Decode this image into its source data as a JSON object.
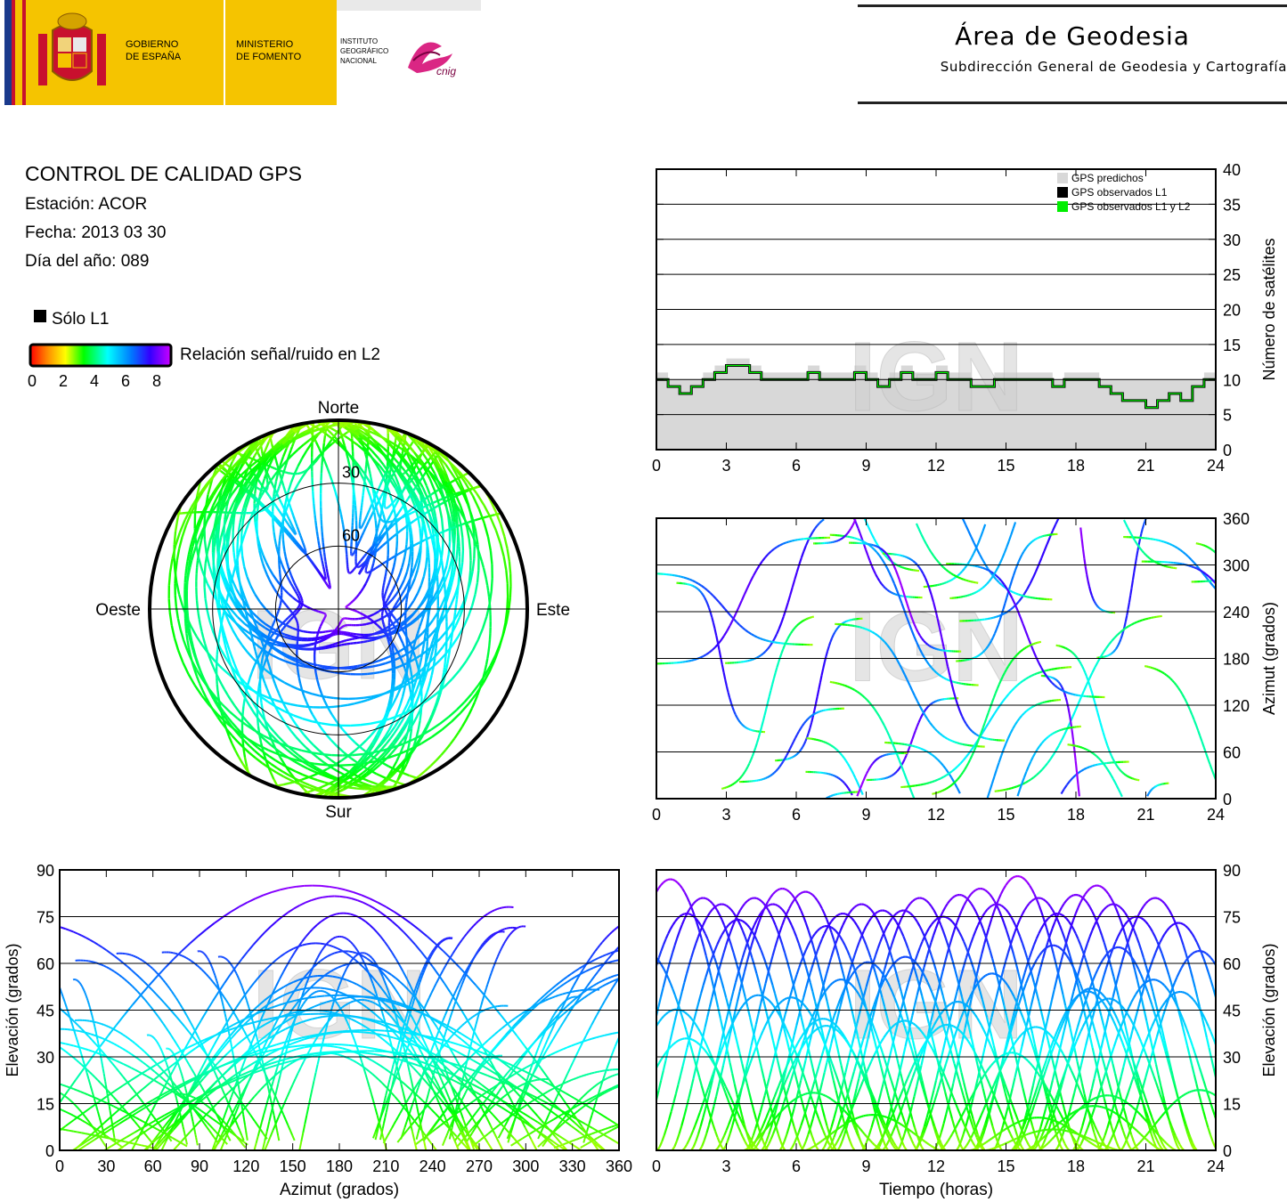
{
  "header": {
    "gobierno_line1": "GOBIERNO",
    "gobierno_line2": "DE ESPAÑA",
    "ministerio_line1": "MINISTERIO",
    "ministerio_line2": "DE FOMENTO",
    "instituto_line1": "INSTITUTO",
    "instituto_line2": "GEOGRÁFICO",
    "instituto_line3": "NACIONAL",
    "cnig_logo_text": "cnig",
    "area_title": "Área de Geodesia",
    "area_subtitle": "Subdirección General de Geodesia y Cartografía"
  },
  "info": {
    "title": "CONTROL DE CALIDAD GPS",
    "station": "Estación: ACOR",
    "date": "Fecha: 2013 03 30",
    "doy": "Día del año: 089"
  },
  "legend": {
    "only_l1": "Sólo L1",
    "snr_label": "Relación señal/ruido en L2",
    "snr_ticks": [
      "0",
      "2",
      "4",
      "6",
      "8"
    ]
  },
  "watermark": "IGN",
  "colors": {
    "l2_snr_scale": [
      "#ff0000",
      "#ff8800",
      "#ffff00",
      "#00ff00",
      "#00ffff",
      "#0066ff",
      "#0000ff",
      "#9900ff",
      "#cc00ff"
    ],
    "predicted_fill": "#d8d8d8",
    "observed_l1": "#000000",
    "observed_l1_l2": "#00ee00"
  },
  "chart_data": [
    {
      "type": "polar",
      "id": "skyplot",
      "labels": {
        "north": "Norte",
        "south": "Sur",
        "east": "Este",
        "west": "Oeste"
      },
      "elevation_rings": [
        "30",
        "60"
      ]
    },
    {
      "type": "area",
      "id": "num_sats",
      "ylabel": "Número de satélites",
      "xticks": [
        "0",
        "3",
        "6",
        "9",
        "12",
        "15",
        "18",
        "21",
        "24"
      ],
      "yticks": [
        "0",
        "5",
        "10",
        "15",
        "20",
        "25",
        "30",
        "35",
        "40"
      ],
      "xlim": [
        0,
        24
      ],
      "ylim": [
        0,
        40
      ],
      "legend": [
        "GPS predichos",
        "GPS observados L1",
        "GPS observados L1 y L2"
      ],
      "legend_position": "top-right",
      "series": [
        {
          "name": "GPS observados L1 y L2",
          "x": [
            0,
            0.5,
            1,
            1.5,
            2,
            2.5,
            3,
            3.5,
            4,
            4.5,
            5,
            5.5,
            6,
            6.5,
            7,
            7.5,
            8,
            8.5,
            9,
            9.5,
            10,
            10.5,
            11,
            11.5,
            12,
            12.5,
            13,
            13.5,
            14,
            14.5,
            15,
            15.5,
            16,
            16.5,
            17,
            17.5,
            18,
            18.5,
            19,
            19.5,
            20,
            20.5,
            21,
            21.5,
            22,
            22.5,
            23,
            23.5,
            24
          ],
          "values": [
            10,
            9,
            8,
            9,
            10,
            11,
            12,
            12,
            11,
            10,
            10,
            10,
            10,
            11,
            10,
            10,
            10,
            11,
            10,
            9,
            10,
            11,
            10,
            10,
            11,
            10,
            10,
            9,
            9,
            10,
            10,
            10,
            10,
            10,
            9,
            10,
            10,
            10,
            9,
            8,
            7,
            7,
            6,
            7,
            8,
            7,
            9,
            10,
            10
          ]
        }
      ]
    },
    {
      "type": "scatter",
      "id": "azimuth_time",
      "ylabel": "Azimut (grados)",
      "xticks": [
        "0",
        "3",
        "6",
        "9",
        "12",
        "15",
        "18",
        "21",
        "24"
      ],
      "yticks": [
        "0",
        "60",
        "120",
        "180",
        "240",
        "300",
        "360"
      ],
      "xlim": [
        0,
        24
      ],
      "ylim": [
        0,
        360
      ]
    },
    {
      "type": "scatter",
      "id": "elevation_azimuth",
      "xlabel": "Azimut (grados)",
      "ylabel": "Elevación (grados)",
      "xticks": [
        "0",
        "30",
        "60",
        "90",
        "120",
        "150",
        "180",
        "210",
        "240",
        "270",
        "300",
        "330",
        "360"
      ],
      "yticks": [
        "0",
        "15",
        "30",
        "45",
        "60",
        "75",
        "90"
      ],
      "xlim": [
        0,
        360
      ],
      "ylim": [
        0,
        90
      ]
    },
    {
      "type": "scatter",
      "id": "elevation_time",
      "xlabel": "Tiempo (horas)",
      "ylabel": "Elevación (grados)",
      "xticks": [
        "0",
        "3",
        "6",
        "9",
        "12",
        "15",
        "18",
        "21",
        "24"
      ],
      "yticks": [
        "0",
        "15",
        "30",
        "45",
        "60",
        "75",
        "90"
      ],
      "xlim": [
        0,
        24
      ],
      "ylim": [
        0,
        90
      ],
      "pass_peaks": [
        {
          "t": 0.6,
          "elev": 87
        },
        {
          "t": 1.3,
          "elev": 76
        },
        {
          "t": 2.0,
          "elev": 81
        },
        {
          "t": 2.8,
          "elev": 79
        },
        {
          "t": 3.5,
          "elev": 74
        },
        {
          "t": 4.2,
          "elev": 81
        },
        {
          "t": 5.0,
          "elev": 79
        },
        {
          "t": 5.4,
          "elev": 84
        },
        {
          "t": 6.4,
          "elev": 83
        },
        {
          "t": 7.3,
          "elev": 72
        },
        {
          "t": 8.0,
          "elev": 76
        },
        {
          "t": 8.8,
          "elev": 79
        },
        {
          "t": 9.7,
          "elev": 77
        },
        {
          "t": 10.6,
          "elev": 77
        },
        {
          "t": 11.3,
          "elev": 81
        },
        {
          "t": 12.3,
          "elev": 75
        },
        {
          "t": 13.0,
          "elev": 82
        },
        {
          "t": 13.9,
          "elev": 84
        },
        {
          "t": 14.6,
          "elev": 79
        },
        {
          "t": 15.5,
          "elev": 88
        },
        {
          "t": 16.4,
          "elev": 81
        },
        {
          "t": 17.2,
          "elev": 76
        },
        {
          "t": 18.0,
          "elev": 82
        },
        {
          "t": 18.9,
          "elev": 85
        },
        {
          "t": 19.6,
          "elev": 79
        },
        {
          "t": 20.6,
          "elev": 75
        },
        {
          "t": 21.4,
          "elev": 81
        },
        {
          "t": 22.4,
          "elev": 73
        },
        {
          "t": 23.3,
          "elev": 64
        }
      ]
    }
  ]
}
